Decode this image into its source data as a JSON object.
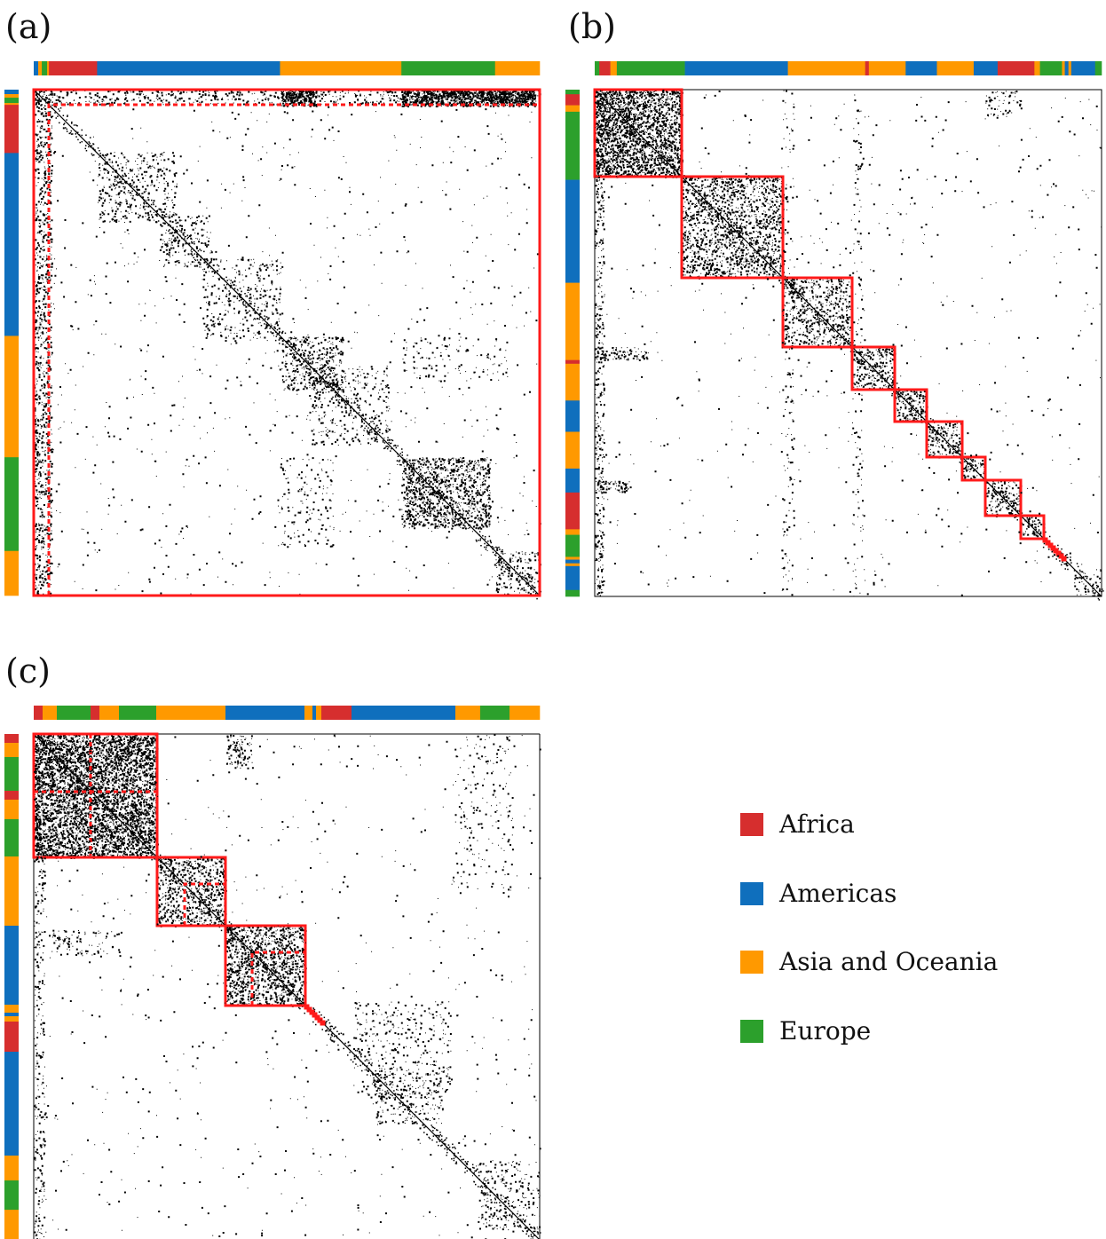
{
  "panels": [
    {
      "label": "(a)"
    },
    {
      "label": "(b)"
    },
    {
      "label": "(c)"
    }
  ],
  "regions": {
    "Africa": "#d62e2e",
    "Americas": "#0f6fbd",
    "Asia and Oceania": "#ff9900",
    "Europe": "#2ca02c"
  },
  "legend": [
    {
      "name": "Africa",
      "color": "#d62e2e"
    },
    {
      "name": "Americas",
      "color": "#0f6fbd"
    },
    {
      "name": "Asia and Oceania",
      "color": "#ff9900"
    },
    {
      "name": "Europe",
      "color": "#2ca02c"
    }
  ],
  "colors": {
    "block_outline": "#ff1a1a",
    "matrix_marks": "#000000",
    "frame": "#000000"
  }
}
